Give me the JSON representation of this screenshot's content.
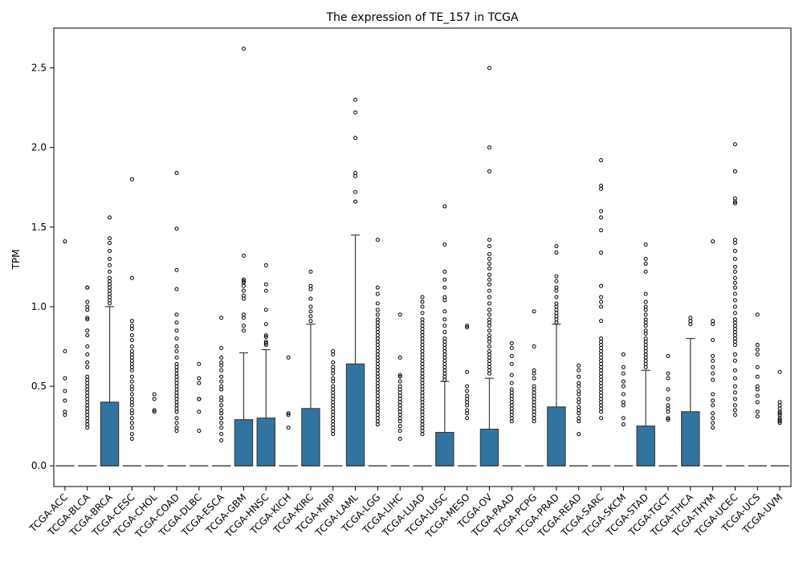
{
  "chart_data": {
    "type": "box",
    "title": "The expression of TE_157 in TCGA",
    "xlabel": "",
    "ylabel": "TPM",
    "ylim": [
      -0.13,
      2.75
    ],
    "yticks": [
      0.0,
      0.5,
      1.0,
      1.5,
      2.0,
      2.5
    ],
    "ytick_labels": [
      "0.0",
      "0.5",
      "1.0",
      "1.5",
      "2.0",
      "2.5"
    ],
    "grid": false,
    "box_color": "#3274a1",
    "categories": [
      "TCGA-ACC",
      "TCGA-BLCA",
      "TCGA-BRCA",
      "TCGA-CESC",
      "TCGA-CHOL",
      "TCGA-COAD",
      "TCGA-DLBC",
      "TCGA-ESCA",
      "TCGA-GBM",
      "TCGA-HNSC",
      "TCGA-KICH",
      "TCGA-KIRC",
      "TCGA-KIRP",
      "TCGA-LAML",
      "TCGA-LGG",
      "TCGA-LIHC",
      "TCGA-LUAD",
      "TCGA-LUSC",
      "TCGA-MESO",
      "TCGA-OV",
      "TCGA-PAAD",
      "TCGA-PCPG",
      "TCGA-PRAD",
      "TCGA-READ",
      "TCGA-SARC",
      "TCGA-SKCM",
      "TCGA-STAD",
      "TCGA-TGCT",
      "TCGA-THCA",
      "TCGA-THYM",
      "TCGA-UCEC",
      "TCGA-UCS",
      "TCGA-UVM"
    ],
    "boxes": [
      {
        "q1": 0,
        "median": 0,
        "q3": 0,
        "whislo": 0,
        "whishi": 0,
        "fliers": [
          1.41,
          0.72,
          0.55,
          0.47,
          0.41,
          0.34,
          0.32
        ]
      },
      {
        "q1": 0,
        "median": 0,
        "q3": 0,
        "whislo": 0,
        "whishi": 0,
        "fliers": [
          1.12,
          1.12,
          1.03,
          1.0,
          0.98,
          0.93,
          0.92,
          0.85,
          0.82,
          0.75,
          0.7,
          0.65,
          0.62,
          0.56,
          0.54,
          0.52,
          0.5,
          0.48,
          0.46,
          0.44,
          0.42,
          0.4,
          0.38,
          0.36,
          0.34,
          0.32,
          0.3,
          0.28,
          0.26,
          0.24
        ]
      },
      {
        "q1": 0,
        "median": 0,
        "q3": 0.4,
        "whislo": 0,
        "whishi": 1.0,
        "fliers": [
          1.56,
          1.43,
          1.4,
          1.35,
          1.3,
          1.26,
          1.22,
          1.18,
          1.16,
          1.14,
          1.12,
          1.1,
          1.08,
          1.06,
          1.04,
          1.02
        ]
      },
      {
        "q1": 0,
        "median": 0,
        "q3": 0,
        "whislo": 0,
        "whishi": 0,
        "fliers": [
          1.8,
          1.18,
          0.91,
          0.88,
          0.86,
          0.82,
          0.79,
          0.75,
          0.72,
          0.7,
          0.68,
          0.66,
          0.64,
          0.62,
          0.6,
          0.56,
          0.53,
          0.5,
          0.48,
          0.45,
          0.42,
          0.4,
          0.38,
          0.35,
          0.33,
          0.3,
          0.27,
          0.24,
          0.2,
          0.17
        ]
      },
      {
        "q1": 0,
        "median": 0,
        "q3": 0,
        "whislo": 0,
        "whishi": 0,
        "fliers": [
          0.45,
          0.42,
          0.35,
          0.34
        ]
      },
      {
        "q1": 0,
        "median": 0,
        "q3": 0,
        "whislo": 0,
        "whishi": 0,
        "fliers": [
          1.84,
          1.49,
          1.23,
          1.11,
          0.95,
          0.9,
          0.85,
          0.8,
          0.75,
          0.72,
          0.68,
          0.64,
          0.62,
          0.6,
          0.58,
          0.56,
          0.54,
          0.52,
          0.5,
          0.48,
          0.46,
          0.44,
          0.42,
          0.4,
          0.38,
          0.36,
          0.34,
          0.3,
          0.27,
          0.24,
          0.22
        ]
      },
      {
        "q1": 0,
        "median": 0,
        "q3": 0,
        "whislo": 0,
        "whishi": 0,
        "fliers": [
          0.64,
          0.55,
          0.52,
          0.42,
          0.42,
          0.34,
          0.22
        ]
      },
      {
        "q1": 0,
        "median": 0,
        "q3": 0,
        "whislo": 0,
        "whishi": 0,
        "fliers": [
          0.93,
          0.74,
          0.68,
          0.65,
          0.63,
          0.6,
          0.56,
          0.53,
          0.5,
          0.48,
          0.43,
          0.41,
          0.38,
          0.35,
          0.33,
          0.3,
          0.27,
          0.24,
          0.2,
          0.16
        ]
      },
      {
        "q1": 0,
        "median": 0,
        "q3": 0.29,
        "whislo": 0,
        "whishi": 0.71,
        "fliers": [
          2.62,
          1.32,
          1.17,
          1.16,
          1.15,
          1.13,
          1.1,
          1.07,
          1.05,
          0.95,
          0.93,
          0.88,
          0.85
        ]
      },
      {
        "q1": 0,
        "median": 0,
        "q3": 0.3,
        "whislo": 0,
        "whishi": 0.73,
        "fliers": [
          1.26,
          1.14,
          1.1,
          0.98,
          0.89,
          0.82,
          0.81,
          0.78,
          0.77,
          0.76
        ]
      },
      {
        "q1": 0,
        "median": 0,
        "q3": 0,
        "whislo": 0,
        "whishi": 0,
        "fliers": [
          0.68,
          0.33,
          0.32,
          0.24
        ]
      },
      {
        "q1": 0,
        "median": 0,
        "q3": 0.36,
        "whislo": 0,
        "whishi": 0.89,
        "fliers": [
          1.22,
          1.13,
          1.11,
          1.05,
          1.0,
          0.97,
          0.94,
          0.91
        ]
      },
      {
        "q1": 0,
        "median": 0,
        "q3": 0,
        "whislo": 0,
        "whishi": 0,
        "fliers": [
          0.72,
          0.7,
          0.65,
          0.62,
          0.6,
          0.58,
          0.55,
          0.53,
          0.5,
          0.48,
          0.46,
          0.44,
          0.42,
          0.4,
          0.38,
          0.36,
          0.34,
          0.32,
          0.3,
          0.28,
          0.26,
          0.24,
          0.22,
          0.2
        ]
      },
      {
        "q1": 0,
        "median": 0,
        "q3": 0.64,
        "whislo": 0,
        "whishi": 1.45,
        "fliers": [
          2.3,
          2.22,
          2.06,
          1.84,
          1.82,
          1.72,
          1.66
        ]
      },
      {
        "q1": 0,
        "median": 0,
        "q3": 0,
        "whislo": 0,
        "whishi": 0,
        "fliers": [
          1.42,
          1.12,
          1.08,
          1.02,
          0.98,
          0.95,
          0.92,
          0.9,
          0.88,
          0.86,
          0.84,
          0.82,
          0.8,
          0.78,
          0.76,
          0.74,
          0.72,
          0.7,
          0.68,
          0.66,
          0.64,
          0.62,
          0.6,
          0.58,
          0.56,
          0.54,
          0.52,
          0.5,
          0.48,
          0.46,
          0.44,
          0.42,
          0.4,
          0.38,
          0.36,
          0.34,
          0.32,
          0.3,
          0.28,
          0.26
        ]
      },
      {
        "q1": 0,
        "median": 0,
        "q3": 0,
        "whislo": 0,
        "whishi": 0,
        "fliers": [
          0.95,
          0.68,
          0.57,
          0.56,
          0.53,
          0.5,
          0.48,
          0.46,
          0.44,
          0.42,
          0.4,
          0.38,
          0.36,
          0.34,
          0.32,
          0.3,
          0.28,
          0.25,
          0.22,
          0.17
        ]
      },
      {
        "q1": 0,
        "median": 0,
        "q3": 0,
        "whislo": 0,
        "whishi": 0,
        "fliers": [
          1.06,
          1.03,
          1.0,
          0.96,
          0.92,
          0.9,
          0.88,
          0.86,
          0.84,
          0.82,
          0.8,
          0.78,
          0.76,
          0.74,
          0.72,
          0.7,
          0.68,
          0.66,
          0.64,
          0.62,
          0.6,
          0.58,
          0.56,
          0.54,
          0.52,
          0.5,
          0.48,
          0.46,
          0.44,
          0.42,
          0.4,
          0.38,
          0.36,
          0.34,
          0.32,
          0.3,
          0.28,
          0.26,
          0.24,
          0.22,
          0.2
        ]
      },
      {
        "q1": 0,
        "median": 0,
        "q3": 0.21,
        "whislo": 0,
        "whishi": 0.53,
        "fliers": [
          1.63,
          1.39,
          1.22,
          1.17,
          1.12,
          1.06,
          1.04,
          0.97,
          0.92,
          0.88,
          0.84,
          0.8,
          0.78,
          0.76,
          0.74,
          0.72,
          0.7,
          0.68,
          0.66,
          0.64,
          0.62,
          0.6,
          0.58,
          0.56,
          0.54
        ]
      },
      {
        "q1": 0,
        "median": 0,
        "q3": 0,
        "whislo": 0,
        "whishi": 0,
        "fliers": [
          0.88,
          0.87,
          0.59,
          0.5,
          0.47,
          0.44,
          0.42,
          0.4,
          0.38,
          0.35,
          0.33,
          0.3
        ]
      },
      {
        "q1": 0,
        "median": 0,
        "q3": 0.23,
        "whislo": 0,
        "whishi": 0.55,
        "fliers": [
          2.5,
          2.0,
          1.85,
          1.42,
          1.38,
          1.33,
          1.3,
          1.27,
          1.24,
          1.2,
          1.17,
          1.14,
          1.1,
          1.06,
          1.02,
          0.98,
          0.95,
          0.92,
          0.9,
          0.88,
          0.85,
          0.82,
          0.8,
          0.78,
          0.75,
          0.72,
          0.7,
          0.68,
          0.66,
          0.64,
          0.62,
          0.6,
          0.58
        ]
      },
      {
        "q1": 0,
        "median": 0,
        "q3": 0,
        "whislo": 0,
        "whishi": 0,
        "fliers": [
          0.77,
          0.74,
          0.69,
          0.64,
          0.57,
          0.52,
          0.48,
          0.46,
          0.44,
          0.42,
          0.4,
          0.38,
          0.36,
          0.34,
          0.32,
          0.3,
          0.28
        ]
      },
      {
        "q1": 0,
        "median": 0,
        "q3": 0,
        "whislo": 0,
        "whishi": 0,
        "fliers": [
          0.97,
          0.75,
          0.6,
          0.58,
          0.55,
          0.5,
          0.48,
          0.46,
          0.44,
          0.42,
          0.4,
          0.38,
          0.36,
          0.34,
          0.32,
          0.3,
          0.28
        ]
      },
      {
        "q1": 0,
        "median": 0,
        "q3": 0.37,
        "whislo": 0,
        "whishi": 0.89,
        "fliers": [
          1.38,
          1.34,
          1.19,
          1.16,
          1.12,
          1.1,
          1.06,
          1.02,
          1.0,
          0.98,
          0.96,
          0.94,
          0.92,
          0.9
        ]
      },
      {
        "q1": 0,
        "median": 0,
        "q3": 0,
        "whislo": 0,
        "whishi": 0,
        "fliers": [
          0.63,
          0.6,
          0.56,
          0.52,
          0.5,
          0.47,
          0.45,
          0.42,
          0.4,
          0.37,
          0.35,
          0.33,
          0.3,
          0.28,
          0.2
        ]
      },
      {
        "q1": 0,
        "median": 0,
        "q3": 0,
        "whislo": 0,
        "whishi": 0,
        "fliers": [
          1.92,
          1.76,
          1.74,
          1.6,
          1.56,
          1.48,
          1.34,
          1.13,
          1.06,
          1.03,
          1.0,
          0.91,
          0.8,
          0.78,
          0.76,
          0.74,
          0.72,
          0.7,
          0.68,
          0.66,
          0.64,
          0.62,
          0.6,
          0.58,
          0.56,
          0.54,
          0.52,
          0.5,
          0.48,
          0.46,
          0.44,
          0.42,
          0.4,
          0.38,
          0.36,
          0.34,
          0.3
        ]
      },
      {
        "q1": 0,
        "median": 0,
        "q3": 0,
        "whislo": 0,
        "whishi": 0,
        "fliers": [
          0.7,
          0.62,
          0.58,
          0.53,
          0.5,
          0.45,
          0.4,
          0.38,
          0.3,
          0.26
        ]
      },
      {
        "q1": 0,
        "median": 0,
        "q3": 0.25,
        "whislo": 0,
        "whishi": 0.6,
        "fliers": [
          1.39,
          1.3,
          1.27,
          1.22,
          1.08,
          1.03,
          1.0,
          0.98,
          0.95,
          0.92,
          0.9,
          0.88,
          0.85,
          0.83,
          0.8,
          0.78,
          0.76,
          0.74,
          0.72,
          0.7,
          0.68,
          0.66,
          0.64,
          0.62
        ]
      },
      {
        "q1": 0,
        "median": 0,
        "q3": 0,
        "whislo": 0,
        "whishi": 0,
        "fliers": [
          0.69,
          0.58,
          0.55,
          0.48,
          0.42,
          0.38,
          0.36,
          0.34,
          0.3,
          0.29
        ]
      },
      {
        "q1": 0,
        "median": 0,
        "q3": 0.34,
        "whislo": 0,
        "whishi": 0.8,
        "fliers": [
          0.93,
          0.91,
          0.89
        ]
      },
      {
        "q1": 0,
        "median": 0,
        "q3": 0,
        "whislo": 0,
        "whishi": 0,
        "fliers": [
          1.41,
          0.91,
          0.89,
          0.79,
          0.69,
          0.66,
          0.62,
          0.58,
          0.54,
          0.45,
          0.41,
          0.38,
          0.33,
          0.3,
          0.27,
          0.24
        ]
      },
      {
        "q1": 0,
        "median": 0,
        "q3": 0,
        "whislo": 0,
        "whishi": 0,
        "fliers": [
          2.02,
          1.85,
          1.68,
          1.66,
          1.65,
          1.42,
          1.4,
          1.35,
          1.3,
          1.25,
          1.22,
          1.18,
          1.15,
          1.12,
          1.08,
          1.04,
          1.0,
          0.96,
          0.92,
          0.9,
          0.88,
          0.86,
          0.84,
          0.82,
          0.8,
          0.78,
          0.76,
          0.7,
          0.66,
          0.6,
          0.55,
          0.5,
          0.46,
          0.42,
          0.38,
          0.35,
          0.32
        ]
      },
      {
        "q1": 0,
        "median": 0,
        "q3": 0,
        "whislo": 0,
        "whishi": 0,
        "fliers": [
          0.95,
          0.76,
          0.73,
          0.7,
          0.62,
          0.56,
          0.5,
          0.48,
          0.44,
          0.4,
          0.34,
          0.31
        ]
      },
      {
        "q1": 0,
        "median": 0,
        "q3": 0,
        "whislo": 0,
        "whishi": 0,
        "fliers": [
          0.59,
          0.4,
          0.38,
          0.36,
          0.34,
          0.33,
          0.32,
          0.3,
          0.29,
          0.28,
          0.27
        ]
      }
    ]
  }
}
